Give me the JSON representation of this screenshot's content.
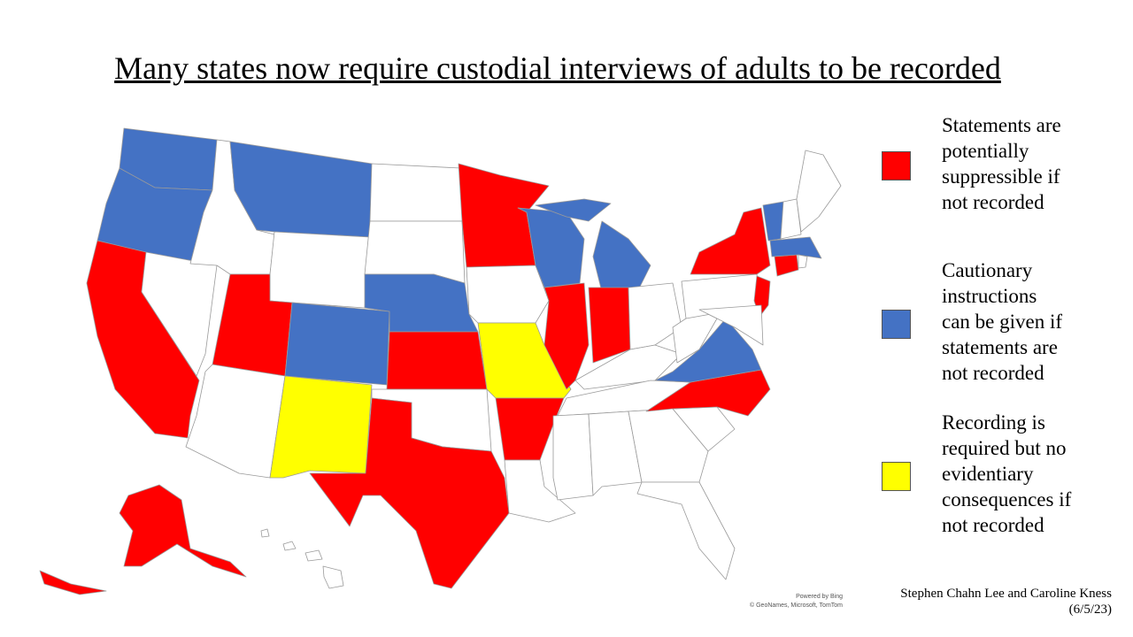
{
  "title": "Many states now require custodial interviews of adults to be recorded",
  "legend": [
    {
      "color": "#ff0000",
      "lines": [
        "Statements are",
        "potentially",
        "suppressible if",
        "not recorded"
      ]
    },
    {
      "color": "#4472c4",
      "lines": [
        "Cautionary",
        "instructions",
        "can be given if",
        "statements are",
        "not recorded"
      ]
    },
    {
      "color": "#ffff00",
      "lines": [
        "Recording is",
        "required but no",
        "evidentiary",
        "consequences if",
        "not recorded"
      ]
    }
  ],
  "map_attribution": [
    "Powered by Bing",
    "© GeoNames, Microsoft, TomTom"
  ],
  "credit": [
    "Stephen Chahn Lee and Caroline Kness",
    "(6/5/23)"
  ]
}
